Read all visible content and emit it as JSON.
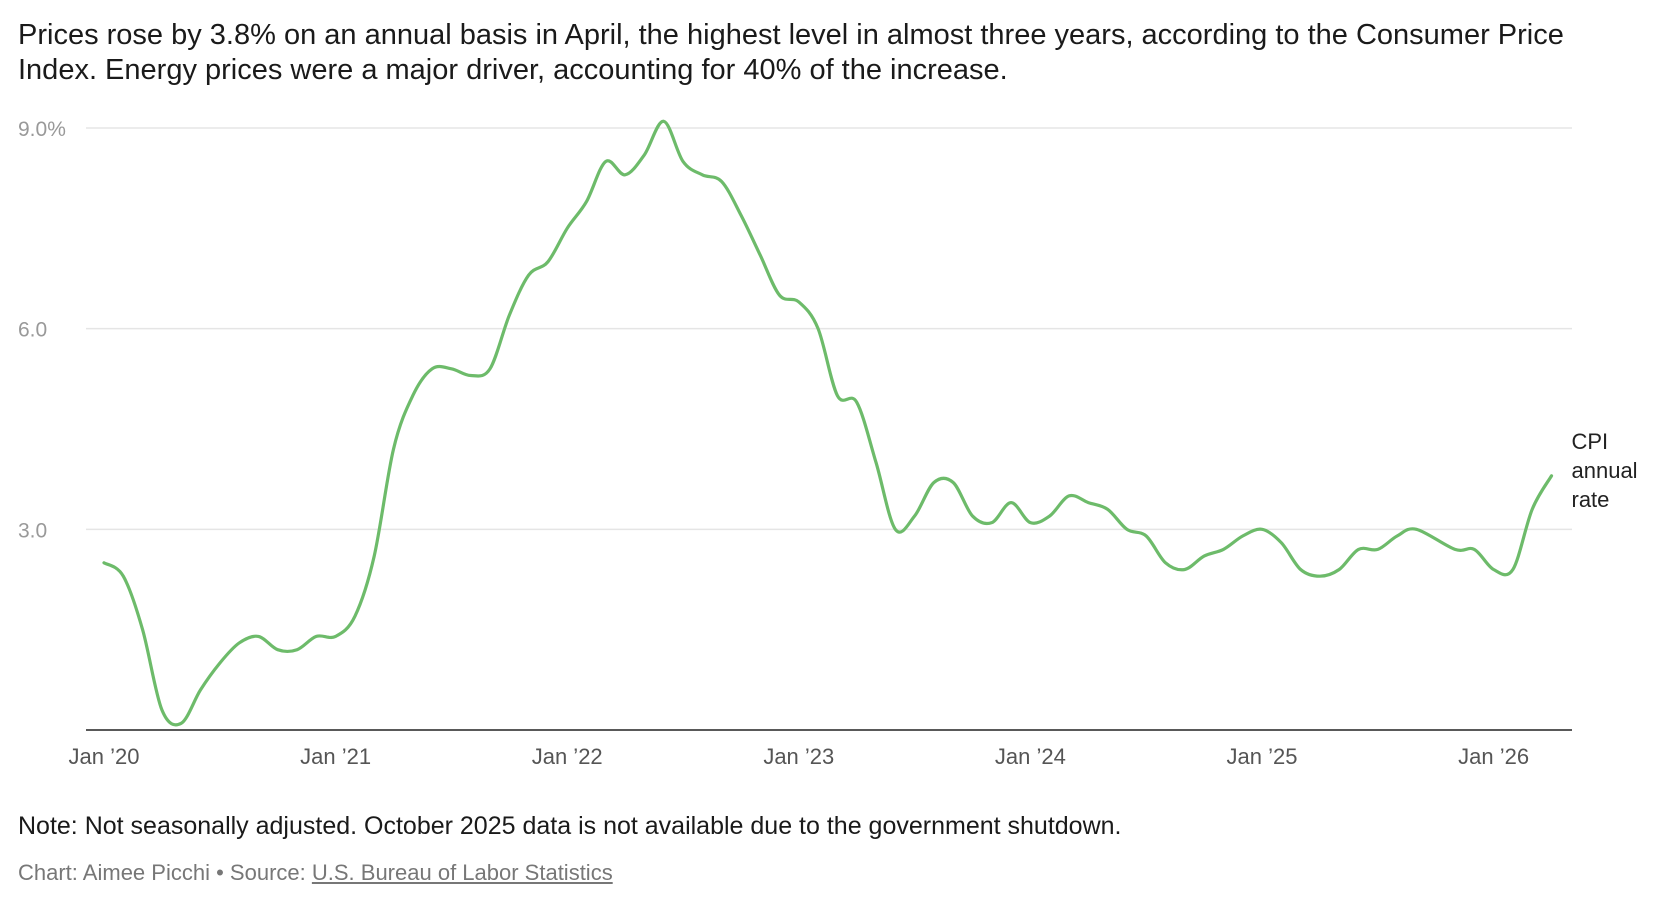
{
  "title": "Prices rose by 3.8% on an annual basis in April, the highest level in almost three years, according to the Consumer Price Index. Energy prices were a major driver, accounting for 40% of the increase.",
  "note": "Note: Not seasonally adjusted. October 2025 data is not available due to the government shutdown.",
  "credit": {
    "chart_by": "Chart: Aimee Picchi",
    "separator": "•",
    "source_prefix": "Source:",
    "source_name": "U.S. Bureau of Labor Statistics"
  },
  "colors": {
    "line": "#6dbb6a",
    "grid": "#e5e5e5",
    "axis": "#222222"
  },
  "chart_data": {
    "type": "line",
    "title": "",
    "xlabel": "",
    "ylabel": "",
    "ylim": [
      0,
      9.0
    ],
    "y_ticks": [
      {
        "value": 3.0,
        "label": "3.0"
      },
      {
        "value": 6.0,
        "label": "6.0"
      },
      {
        "value": 9.0,
        "label": "9.0%"
      }
    ],
    "x_ticks": [
      {
        "x": "2020-01",
        "label": "Jan '20"
      },
      {
        "x": "2021-01",
        "label": "Jan '21"
      },
      {
        "x": "2022-01",
        "label": "Jan '22"
      },
      {
        "x": "2023-01",
        "label": "Jan '23"
      },
      {
        "x": "2024-01",
        "label": "Jan '24"
      },
      {
        "x": "2025-01",
        "label": "Jan '25"
      },
      {
        "x": "2026-01",
        "label": "Jan '26"
      }
    ],
    "grid": true,
    "series": [
      {
        "name": "CPI annual rate",
        "label_lines": [
          "CPI",
          "annual",
          "rate"
        ],
        "x": [
          "2020-01",
          "2020-02",
          "2020-03",
          "2020-04",
          "2020-05",
          "2020-06",
          "2020-07",
          "2020-08",
          "2020-09",
          "2020-10",
          "2020-11",
          "2020-12",
          "2021-01",
          "2021-02",
          "2021-03",
          "2021-04",
          "2021-05",
          "2021-06",
          "2021-07",
          "2021-08",
          "2021-09",
          "2021-10",
          "2021-11",
          "2021-12",
          "2022-01",
          "2022-02",
          "2022-03",
          "2022-04",
          "2022-05",
          "2022-06",
          "2022-07",
          "2022-08",
          "2022-09",
          "2022-10",
          "2022-11",
          "2022-12",
          "2023-01",
          "2023-02",
          "2023-03",
          "2023-04",
          "2023-05",
          "2023-06",
          "2023-07",
          "2023-08",
          "2023-09",
          "2023-10",
          "2023-11",
          "2023-12",
          "2024-01",
          "2024-02",
          "2024-03",
          "2024-04",
          "2024-05",
          "2024-06",
          "2024-07",
          "2024-08",
          "2024-09",
          "2024-10",
          "2024-11",
          "2024-12",
          "2025-01",
          "2025-02",
          "2025-03",
          "2025-04",
          "2025-05",
          "2025-06",
          "2025-07",
          "2025-08",
          "2025-09",
          "2025-11",
          "2025-12",
          "2026-01",
          "2026-02",
          "2026-03",
          "2026-04"
        ],
        "values": [
          2.5,
          2.3,
          1.5,
          0.3,
          0.1,
          0.6,
          1.0,
          1.3,
          1.4,
          1.2,
          1.2,
          1.4,
          1.4,
          1.7,
          2.6,
          4.2,
          5.0,
          5.4,
          5.4,
          5.3,
          5.4,
          6.2,
          6.8,
          7.0,
          7.5,
          7.9,
          8.5,
          8.3,
          8.6,
          9.1,
          8.5,
          8.3,
          8.2,
          7.7,
          7.1,
          6.5,
          6.4,
          6.0,
          5.0,
          4.9,
          4.0,
          3.0,
          3.2,
          3.7,
          3.7,
          3.2,
          3.1,
          3.4,
          3.1,
          3.2,
          3.5,
          3.4,
          3.3,
          3.0,
          2.9,
          2.5,
          2.4,
          2.6,
          2.7,
          2.9,
          3.0,
          2.8,
          2.4,
          2.3,
          2.4,
          2.7,
          2.7,
          2.9,
          3.0,
          2.7,
          2.7,
          2.4,
          2.4,
          3.3,
          3.8
        ]
      }
    ]
  }
}
